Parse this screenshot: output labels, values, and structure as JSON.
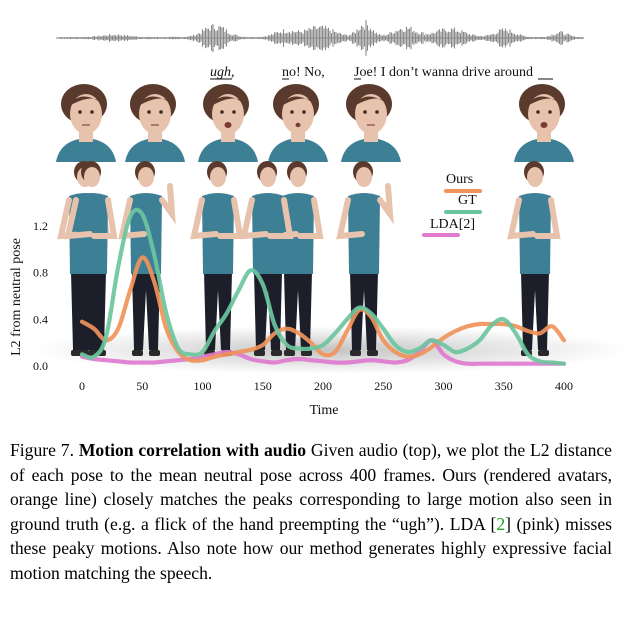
{
  "transcript": {
    "words": [
      {
        "text": "ugh,",
        "underline": "ugh"
      },
      {
        "text": "no! No,",
        "underline": "n"
      },
      {
        "text": "Joe! I don’t wanna drive around",
        "underline": "J"
      }
    ]
  },
  "figure": {
    "avatar_count": 8,
    "face_count": 6,
    "colors": {
      "ours": "#f0935a",
      "gt": "#6cc49e",
      "lda": "#e07ad0",
      "shirt": "#3d7f95",
      "pants": "#1c1f2a",
      "skin": "#e7c2ad",
      "hair": "#5a3a2c"
    }
  },
  "chart_data": {
    "type": "line",
    "xlabel": "Time",
    "ylabel": "L2 from neutral pose",
    "xlim": [
      0,
      400
    ],
    "ylim": [
      0,
      1.4
    ],
    "xticks": [
      "0",
      "50",
      "100",
      "150",
      "200",
      "250",
      "300",
      "350",
      "400"
    ],
    "yticks": [
      "0.0",
      "0.4",
      "0.8",
      "1.2"
    ],
    "legend_position": "top-right",
    "series": [
      {
        "name": "Ours",
        "color": "#f0935a",
        "x": [
          0,
          10,
          20,
          30,
          40,
          50,
          60,
          70,
          80,
          90,
          100,
          110,
          120,
          130,
          140,
          150,
          160,
          170,
          180,
          190,
          200,
          210,
          220,
          230,
          240,
          250,
          260,
          270,
          280,
          290,
          300,
          310,
          320,
          330,
          340,
          350,
          360,
          370,
          380,
          390,
          400
        ],
        "y": [
          0.38,
          0.32,
          0.22,
          0.32,
          0.65,
          0.93,
          0.72,
          0.32,
          0.12,
          0.05,
          0.05,
          0.08,
          0.1,
          0.12,
          0.14,
          0.18,
          0.28,
          0.32,
          0.28,
          0.2,
          0.1,
          0.12,
          0.3,
          0.48,
          0.42,
          0.22,
          0.12,
          0.08,
          0.1,
          0.16,
          0.24,
          0.3,
          0.34,
          0.36,
          0.36,
          0.36,
          0.34,
          0.3,
          0.28,
          0.34,
          0.22
        ]
      },
      {
        "name": "GT",
        "color": "#6cc49e",
        "x": [
          0,
          10,
          20,
          30,
          40,
          50,
          60,
          70,
          80,
          90,
          100,
          110,
          120,
          130,
          140,
          150,
          160,
          170,
          180,
          190,
          200,
          210,
          220,
          230,
          240,
          250,
          260,
          270,
          280,
          290,
          300,
          310,
          320,
          330,
          340,
          350,
          360,
          370,
          380,
          390,
          400
        ],
        "y": [
          0.1,
          0.08,
          0.25,
          0.85,
          1.28,
          1.3,
          0.95,
          0.45,
          0.15,
          0.1,
          0.12,
          0.3,
          0.45,
          0.65,
          0.82,
          0.7,
          0.35,
          0.18,
          0.15,
          0.15,
          0.18,
          0.28,
          0.4,
          0.5,
          0.45,
          0.32,
          0.18,
          0.12,
          0.15,
          0.22,
          0.18,
          0.12,
          0.15,
          0.22,
          0.35,
          0.4,
          0.28,
          0.1,
          0.04,
          0.03,
          0.02
        ]
      },
      {
        "name": "LDA[2]",
        "color": "#e07ad0",
        "x": [
          0,
          10,
          20,
          30,
          40,
          50,
          60,
          70,
          80,
          90,
          100,
          110,
          120,
          130,
          140,
          150,
          160,
          170,
          180,
          190,
          200,
          210,
          220,
          230,
          240,
          250,
          260,
          270,
          280,
          290,
          300,
          310,
          320,
          330,
          340,
          350,
          360,
          370,
          380,
          390,
          400
        ],
        "y": [
          0.08,
          0.06,
          0.05,
          0.04,
          0.03,
          0.03,
          0.03,
          0.04,
          0.05,
          0.06,
          0.08,
          0.1,
          0.12,
          0.1,
          0.06,
          0.04,
          0.03,
          0.05,
          0.06,
          0.05,
          0.04,
          0.03,
          0.03,
          0.04,
          0.05,
          0.04,
          0.03,
          0.05,
          0.12,
          0.22,
          0.1,
          0.04,
          0.02,
          0.02,
          0.02,
          0.02,
          0.02,
          0.02,
          0.02,
          0.02,
          0.02
        ]
      }
    ]
  },
  "caption": {
    "label": "Figure 7.",
    "title": "Motion correlation with audio",
    "text_before_ref": "Given audio (top), we plot the L2 distance of each pose to the mean neutral pose across 400 frames. Ours (rendered avatars, orange line) closely matches the peaks corresponding to large motion also seen in ground truth (e.g. a flick of the hand preempting the “ugh”). LDA [",
    "ref": "2",
    "text_after_ref": "] (pink) misses these peaky motions. Also note how our method generates highly expressive facial motion matching the speech."
  }
}
